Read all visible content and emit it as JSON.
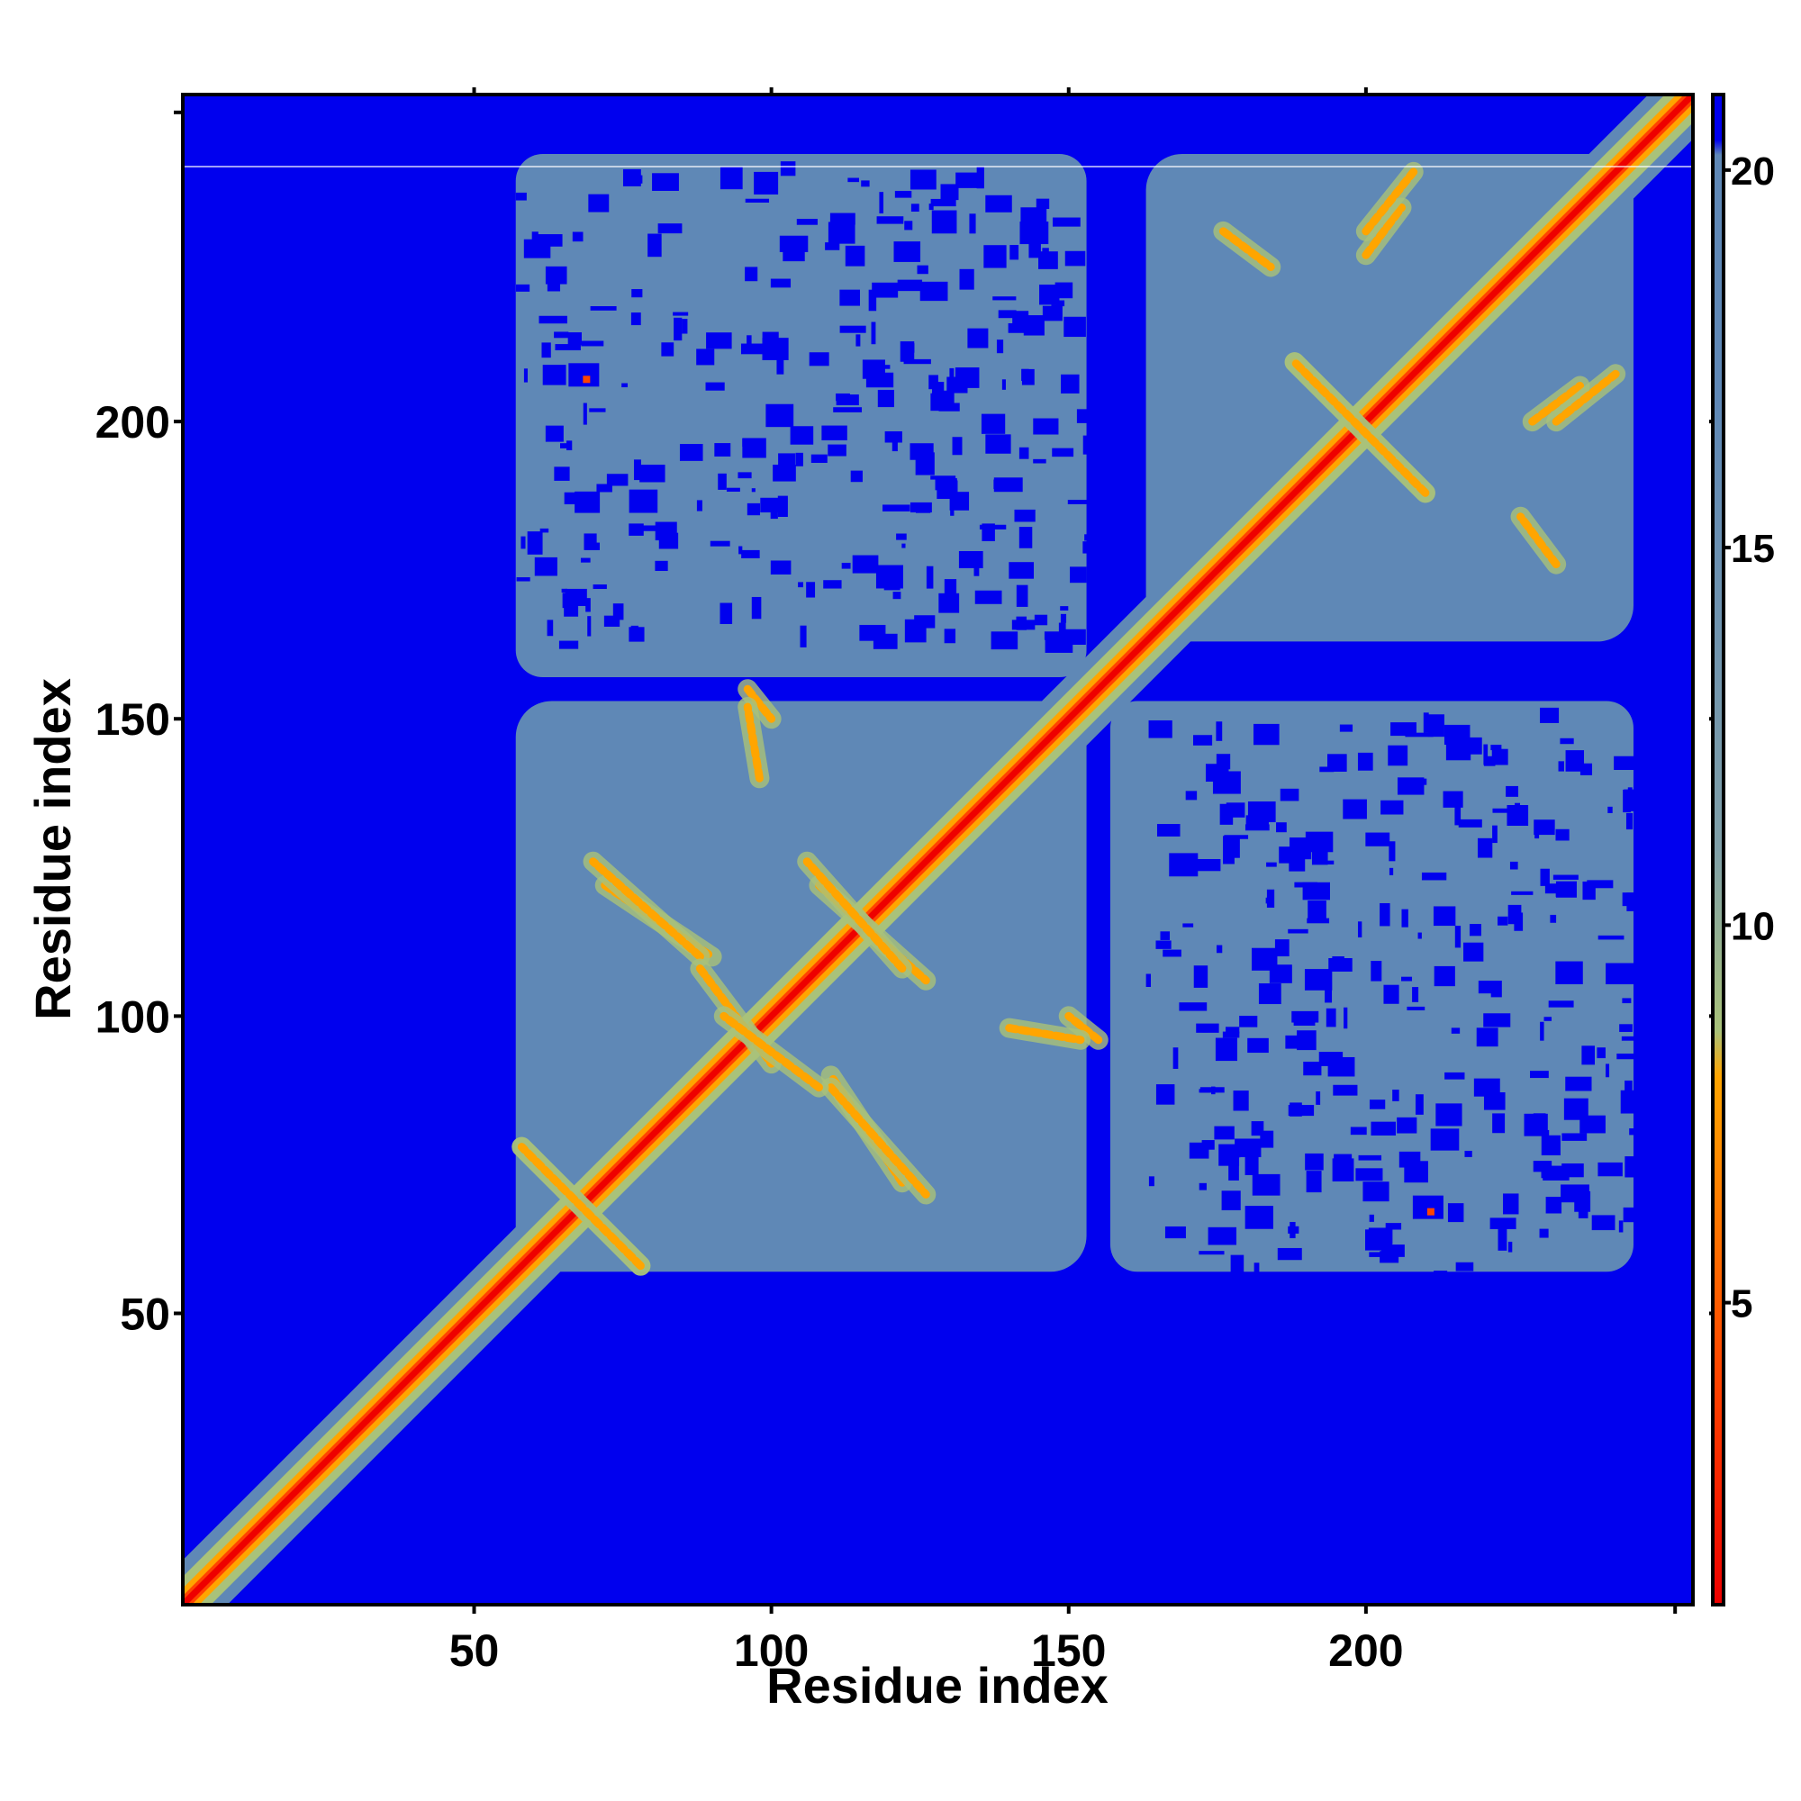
{
  "chart_data": {
    "type": "heatmap",
    "title": "",
    "xlabel": "Residue index",
    "ylabel": "Residue index",
    "xlim": [
      1,
      255
    ],
    "ylim": [
      1,
      255
    ],
    "x_ticks": [
      50,
      100,
      150,
      200
    ],
    "y_ticks": [
      50,
      100,
      150,
      200
    ],
    "colorbar": {
      "ticks": [
        5,
        10,
        15,
        20
      ],
      "range": [
        1,
        21
      ],
      "colors": [
        "#ee0000",
        "#ff4400",
        "#ffa500",
        "#a9c27a",
        "#5f88b6",
        "#0000ee"
      ],
      "stops": [
        1,
        4,
        8,
        11,
        17,
        21
      ]
    },
    "domains": [
      {
        "name": "domain-1",
        "range": [
          57,
          153
        ]
      },
      {
        "name": "domain-2",
        "range": [
          163,
          245
        ]
      }
    ],
    "contact_segments": [
      {
        "x": [
          58,
          78
        ],
        "y": [
          78,
          58
        ]
      },
      {
        "x": [
          72,
          90
        ],
        "y": [
          122,
          110
        ]
      },
      {
        "x": [
          108,
          126
        ],
        "y": [
          122,
          106
        ]
      },
      {
        "x": [
          110,
          126
        ],
        "y": [
          88,
          70
        ]
      },
      {
        "x": [
          88,
          100
        ],
        "y": [
          108,
          92
        ]
      },
      {
        "x": [
          188,
          210
        ],
        "y": [
          210,
          188
        ]
      },
      {
        "x": [
          200,
          206
        ],
        "y": [
          228,
          236
        ]
      },
      {
        "x": [
          232,
          242
        ],
        "y": [
          200,
          208
        ]
      },
      {
        "x": [
          176,
          184
        ],
        "y": [
          232,
          226
        ]
      },
      {
        "x": [
          96,
          100
        ],
        "y": [
          155,
          150
        ]
      },
      {
        "x": [
          140,
          152
        ],
        "y": [
          98,
          96
        ]
      }
    ],
    "blue_pocket_points": [
      {
        "x": 68,
        "y": 208
      },
      {
        "x": 210,
        "y": 68
      }
    ]
  }
}
